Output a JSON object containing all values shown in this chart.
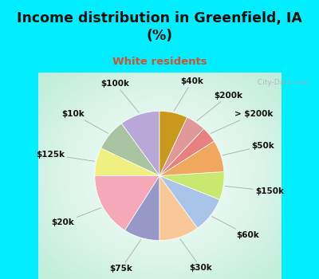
{
  "title": "Income distribution in Greenfield, IA\n(%)",
  "subtitle": "White residents",
  "title_color": "#111111",
  "subtitle_color": "#cc5533",
  "bg_color": "#00eeff",
  "labels": [
    "$100k",
    "$10k",
    "$125k",
    "$20k",
    "$75k",
    "$30k",
    "$60k",
    "$150k",
    "$50k",
    "> $200k",
    "$200k",
    "$40k"
  ],
  "values": [
    10,
    8,
    7,
    16,
    9,
    10,
    9,
    7,
    8,
    4,
    5,
    7
  ],
  "colors": [
    "#b8a8d8",
    "#a8c4a0",
    "#f0f080",
    "#f4a8b8",
    "#9898c8",
    "#f8c898",
    "#a8c4e8",
    "#c8e870",
    "#f0a860",
    "#e88080",
    "#e09898",
    "#c8991a"
  ],
  "startangle": 90,
  "label_fontsize": 7.5,
  "line_color": "#aaaaaa",
  "label_color": "#111111",
  "watermark": " City-Data.com"
}
